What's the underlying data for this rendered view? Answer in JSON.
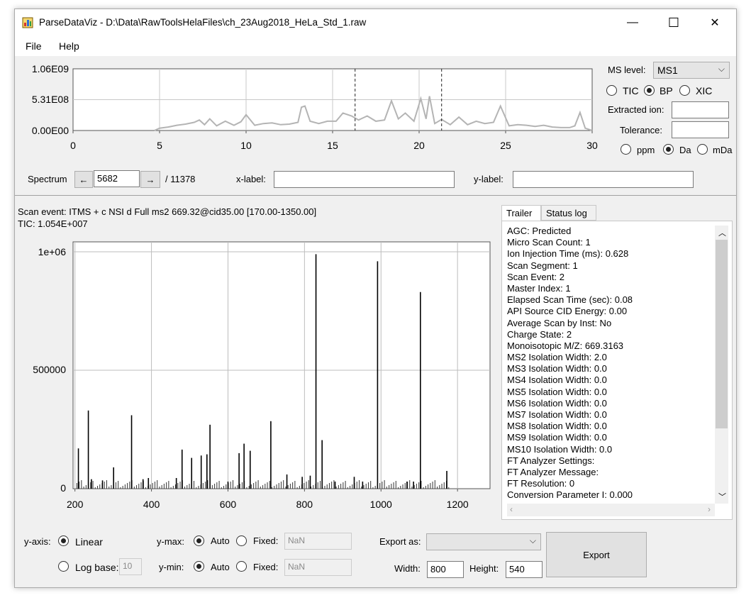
{
  "window": {
    "title": "ParseDataViz - D:\\Data\\RawToolsHelaFiles\\ch_23Aug2018_HeLa_Std_1.raw",
    "minimize_glyph": "—",
    "maximize_glyph": "☐",
    "close_glyph": "✕"
  },
  "menu": {
    "file": "File",
    "help": "Help"
  },
  "chromatogram": {
    "y_ticks": [
      "1.06E09",
      "5.31E08",
      "0.00E00"
    ],
    "x_ticks": [
      "0",
      "5",
      "10",
      "15",
      "20",
      "25",
      "30"
    ]
  },
  "chart_data": [
    {
      "type": "line",
      "x_ticks": [
        0,
        5,
        10,
        15,
        20,
        25,
        30
      ],
      "y_ticks": [
        "1.06E09",
        "5.31E08",
        "0.00E00"
      ],
      "xlim": [
        0,
        30
      ],
      "ylim": [
        0,
        1060000000
      ],
      "grid": true,
      "series_color": "#b4b4b4",
      "cursor_lines_x": [
        16.3,
        21.3
      ],
      "x": [
        4.7,
        5.0,
        5.5,
        6.0,
        6.5,
        7.0,
        7.3,
        7.6,
        7.9,
        8.3,
        8.8,
        9.3,
        9.7,
        10.0,
        10.5,
        11.0,
        11.5,
        12.0,
        12.5,
        13.0,
        13.2,
        13.4,
        13.7,
        14.2,
        14.7,
        15.2,
        15.6,
        16.1,
        16.5,
        17.0,
        17.5,
        18.0,
        18.4,
        18.8,
        19.2,
        19.7,
        20.1,
        20.4,
        20.6,
        20.9,
        21.3,
        21.8,
        22.3,
        22.8,
        23.3,
        23.8,
        24.3,
        24.7,
        25.2,
        25.7,
        26.2,
        26.7,
        27.2,
        27.7,
        28.2,
        28.7,
        29.0,
        29.3,
        29.6
      ],
      "y": [
        0.0,
        40000000,
        60000000,
        90000000,
        110000000,
        140000000,
        180000000,
        100000000,
        200000000,
        80000000,
        160000000,
        90000000,
        150000000,
        270000000,
        90000000,
        120000000,
        130000000,
        100000000,
        110000000,
        140000000,
        400000000,
        420000000,
        160000000,
        120000000,
        160000000,
        160000000,
        300000000,
        250000000,
        180000000,
        250000000,
        160000000,
        180000000,
        510000000,
        200000000,
        300000000,
        160000000,
        550000000,
        200000000,
        590000000,
        120000000,
        190000000,
        100000000,
        230000000,
        100000000,
        160000000,
        120000000,
        140000000,
        420000000,
        80000000,
        100000000,
        90000000,
        70000000,
        90000000,
        60000000,
        50000000,
        50000000,
        80000000,
        310000000,
        40000000
      ]
    },
    {
      "type": "bar",
      "title": "",
      "xlim": [
        195,
        1285
      ],
      "ylim": [
        0,
        1000000
      ],
      "x_ticks": [
        200,
        400,
        600,
        800,
        1000,
        1200
      ],
      "y_ticks": [
        "0",
        "500000",
        "1e+06"
      ],
      "grid": true,
      "series_color": "#000000",
      "x": [
        209,
        235,
        243,
        272,
        301,
        348,
        378,
        392,
        465,
        480,
        505,
        530,
        545,
        553,
        600,
        629,
        642,
        658,
        712,
        754,
        794,
        815,
        830,
        846,
        880,
        930,
        952,
        991,
        1068,
        1085,
        1103,
        1172
      ],
      "values": [
        170000,
        330000,
        40000,
        35000,
        90000,
        310000,
        40000,
        45000,
        45000,
        165000,
        130000,
        140000,
        145000,
        270000,
        30000,
        150000,
        190000,
        160000,
        285000,
        60000,
        50000,
        55000,
        990000,
        205000,
        30000,
        50000,
        30000,
        960000,
        30000,
        30000,
        830000,
        75000
      ]
    }
  ],
  "controls": {
    "ms_level_label": "MS level:",
    "ms_level_value": "MS1",
    "tic": "TIC",
    "bp": "BP",
    "xic": "XIC",
    "extracted_ion_label": "Extracted ion:",
    "tolerance_label": "Tolerance:",
    "ppm": "ppm",
    "da": "Da",
    "mda": "mDa",
    "spectrum_label": "Spectrum",
    "prev_glyph": "←",
    "next_glyph": "→",
    "spectrum_value": "5682",
    "spectrum_total": "/ 11378",
    "xlabel_label": "x-label:",
    "ylabel_label": "y-label:"
  },
  "spectrum": {
    "scan_event": "Scan event: ITMS + c NSI d Full ms2 669.32@cid35.00 [170.00-1350.00]",
    "tic": "TIC: 1.054E+007",
    "y_ticks": [
      "1e+06",
      "500000",
      "0"
    ],
    "x_ticks": [
      "200",
      "400",
      "600",
      "800",
      "1000",
      "1200"
    ]
  },
  "tabs": {
    "trailer": "Trailer",
    "status_log": "Status log"
  },
  "trailer_lines": [
    "AGC: Predicted",
    "Micro Scan Count: 1",
    "Ion Injection Time (ms): 0.628",
    "Scan Segment: 1",
    "Scan Event: 2",
    "Master Index: 1",
    "Elapsed Scan Time (sec): 0.08",
    "API Source CID Energy: 0.00",
    "Average Scan by Inst: No",
    "Charge State: 2",
    "Monoisotopic M/Z: 669.3163",
    "MS2 Isolation Width: 2.0",
    "MS3 Isolation Width: 0.0",
    "MS4 Isolation Width: 0.0",
    "MS5 Isolation Width: 0.0",
    "MS6 Isolation Width: 0.0",
    "MS7 Isolation Width: 0.0",
    "MS8 Isolation Width: 0.0",
    "MS9 Isolation Width: 0.0",
    "MS10 Isolation Width: 0.0",
    "FT Analyzer Settings:",
    "FT Analyzer Message:",
    "FT Resolution: 0",
    "Conversion Parameter I: 0.000"
  ],
  "bottom": {
    "yaxis_label": "y-axis:",
    "linear": "Linear",
    "log_base": "Log base:",
    "log_base_value": "10",
    "ymax_label": "y-max:",
    "ymin_label": "y-min:",
    "auto": "Auto",
    "fixed": "Fixed:",
    "nan": "NaN",
    "export_as": "Export as:",
    "export_value": "",
    "width_label": "Width:",
    "width_value": "800",
    "height_label": "Height:",
    "height_value": "540",
    "export_button": "Export"
  }
}
